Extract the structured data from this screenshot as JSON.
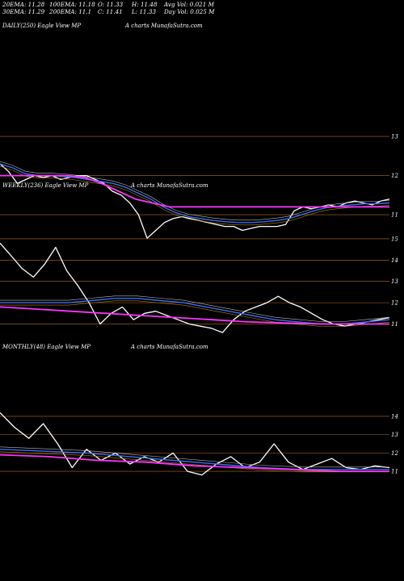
{
  "header": {
    "row1": [
      "20EMA: 11.28",
      "100EMA: 11.18",
      "O: 11.33",
      "H: 11.48",
      "Avg Vol: 0.021 M"
    ],
    "row2": [
      "30EMA: 11.29",
      "200EMA: 11.1",
      "C: 11.41",
      "L: 11.33",
      "Day Vol: 0.025 M"
    ]
  },
  "colors": {
    "background": "#000000",
    "price": "#ffffff",
    "ema_blue": "#3a6cf0",
    "ema_magenta": "#ff33ff",
    "ema_thin": "#bcbcbc",
    "ema_brown": "#b8860b",
    "level_line": "#b8692c"
  },
  "chart_data": [
    {
      "type": "line",
      "panel_label": "DAILY(250) Eagle  View  MP",
      "watermark": "A charts MunafaSutra.com",
      "y_ticks": [
        "13",
        "12",
        "11"
      ],
      "ylim": [
        10.3,
        13.6
      ],
      "series": [
        {
          "role": "price",
          "values": [
            12.3,
            12.1,
            11.8,
            11.9,
            12.0,
            11.95,
            12.0,
            11.9,
            11.95,
            12.0,
            12.0,
            11.9,
            11.8,
            11.6,
            11.5,
            11.3,
            11.0,
            10.4,
            10.6,
            10.8,
            10.9,
            10.95,
            10.9,
            10.85,
            10.8,
            10.75,
            10.7,
            10.7,
            10.6,
            10.65,
            10.7,
            10.7,
            10.7,
            10.75,
            11.1,
            11.2,
            11.15,
            11.2,
            11.25,
            11.2,
            11.3,
            11.35,
            11.3,
            11.25,
            11.35,
            11.4
          ]
        },
        {
          "role": "ema-fast-blue",
          "values": [
            12.3,
            12.2,
            12.05,
            12.0,
            12.0,
            11.98,
            11.95,
            11.9,
            11.85,
            11.8,
            11.7,
            11.55,
            11.4,
            11.2,
            11.05,
            10.95,
            10.9,
            10.85,
            10.82,
            10.8,
            10.8,
            10.82,
            10.85,
            10.9,
            11.0,
            11.1,
            11.18,
            11.22,
            11.25,
            11.28,
            11.28,
            11.3
          ]
        },
        {
          "role": "ema-slow-magenta",
          "values": [
            12.0,
            12.0,
            12.0,
            12.0,
            12.0,
            11.95,
            11.8,
            11.6,
            11.4,
            11.3,
            11.2,
            11.2,
            11.2,
            11.2,
            11.2,
            11.2,
            11.2,
            11.2,
            11.2,
            11.2,
            11.2,
            11.2,
            11.2,
            11.2
          ]
        }
      ]
    },
    {
      "type": "line",
      "panel_label": "WEEKLY(236) Eagle  View  MP",
      "watermark": "A charts MunafaSutra.com",
      "y_ticks": [
        "15",
        "14",
        "13",
        "12",
        "11"
      ],
      "ylim": [
        10.3,
        15.3
      ],
      "series": [
        {
          "role": "price",
          "values": [
            14.8,
            14.2,
            13.6,
            13.2,
            13.8,
            14.6,
            13.5,
            12.8,
            12.0,
            11.0,
            11.5,
            11.8,
            11.2,
            11.5,
            11.6,
            11.4,
            11.2,
            11.0,
            10.9,
            10.8,
            10.6,
            11.2,
            11.6,
            11.8,
            12.0,
            12.3,
            12.0,
            11.8,
            11.5,
            11.2,
            11.0,
            10.9,
            11.0,
            11.1,
            11.2,
            11.3
          ]
        },
        {
          "role": "ema-fast-blue",
          "values": [
            12.0,
            12.0,
            12.0,
            12.0,
            12.1,
            12.2,
            12.2,
            12.1,
            12.0,
            11.8,
            11.6,
            11.4,
            11.2,
            11.1,
            11.0,
            11.0,
            11.1,
            11.2
          ]
        },
        {
          "role": "ema-slow-magenta",
          "values": [
            11.8,
            11.7,
            11.6,
            11.5,
            11.4,
            11.3,
            11.2,
            11.1,
            11.05,
            11.0,
            11.0,
            11.0
          ]
        }
      ]
    },
    {
      "type": "line",
      "panel_label": "MONTHLY(48) Eagle  View  MP",
      "watermark": "A charts MunafaSutra.com",
      "y_ticks": [
        "14",
        "13",
        "12",
        "11"
      ],
      "ylim": [
        10.3,
        14.7
      ],
      "series": [
        {
          "role": "price",
          "values": [
            14.2,
            13.4,
            12.8,
            13.6,
            12.5,
            11.2,
            12.2,
            11.6,
            12.0,
            11.4,
            11.8,
            11.5,
            12.0,
            11.0,
            10.8,
            11.4,
            11.8,
            11.2,
            11.5,
            12.5,
            11.5,
            11.1,
            11.4,
            11.7,
            11.2,
            11.1,
            11.3,
            11.2
          ]
        },
        {
          "role": "ema-fast-blue",
          "values": [
            12.2,
            12.1,
            12.0,
            11.8,
            11.6,
            11.4,
            11.2,
            11.1,
            11.1,
            11.1
          ]
        },
        {
          "role": "ema-slow-magenta",
          "values": [
            11.9,
            11.8,
            11.6,
            11.5,
            11.3,
            11.2,
            11.1,
            11.0,
            11.0
          ]
        }
      ]
    }
  ]
}
